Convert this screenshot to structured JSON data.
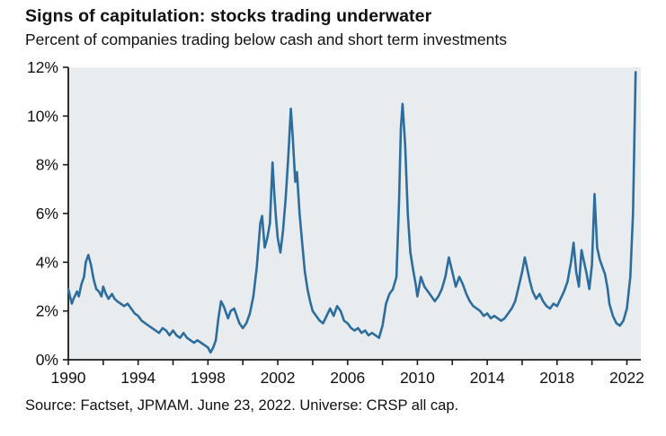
{
  "title": "Signs of capitulation: stocks trading underwater",
  "subtitle": "Percent of companies trading below cash and short term investments",
  "source": "Source: Factset, JPMAM. June 23, 2022. Universe: CRSP all cap.",
  "colors": {
    "line": "#2d6d9e",
    "plot_background": "#e9ecef",
    "axis": "#1a1a1a",
    "text": "#111111"
  },
  "chart_data": {
    "type": "line",
    "title": "Signs of capitulation: stocks trading underwater",
    "subtitle": "Percent of companies trading below cash and short term investments",
    "xlabel": "",
    "ylabel": "Percent of companies trading below cash and short term investments",
    "xlim": [
      1990,
      2022.8
    ],
    "ylim": [
      0,
      12
    ],
    "grid": false,
    "legend": false,
    "x_ticks": [
      1990,
      1994,
      1998,
      2002,
      2006,
      2010,
      2014,
      2018,
      2022
    ],
    "x_tick_labels": [
      "1990",
      "1994",
      "1998",
      "2002",
      "2006",
      "2010",
      "2014",
      "2018",
      "2022"
    ],
    "x_minor_tick_step": 2,
    "y_ticks": [
      0,
      2,
      4,
      6,
      8,
      10,
      12
    ],
    "y_tick_labels": [
      "0%",
      "2%",
      "4%",
      "6%",
      "8%",
      "10%",
      "12%"
    ],
    "series": [
      {
        "name": "Percent of companies trading below cash and short term investments",
        "points": [
          [
            1990.0,
            2.9
          ],
          [
            1990.1,
            2.6
          ],
          [
            1990.2,
            2.3
          ],
          [
            1990.3,
            2.5
          ],
          [
            1990.5,
            2.8
          ],
          [
            1990.6,
            2.6
          ],
          [
            1990.75,
            3.1
          ],
          [
            1990.9,
            3.4
          ],
          [
            1991.0,
            4.0
          ],
          [
            1991.15,
            4.3
          ],
          [
            1991.3,
            3.9
          ],
          [
            1991.45,
            3.3
          ],
          [
            1991.6,
            2.9
          ],
          [
            1991.75,
            2.8
          ],
          [
            1991.9,
            2.6
          ],
          [
            1992.0,
            3.0
          ],
          [
            1992.15,
            2.7
          ],
          [
            1992.3,
            2.5
          ],
          [
            1992.5,
            2.7
          ],
          [
            1992.65,
            2.5
          ],
          [
            1992.8,
            2.4
          ],
          [
            1993.0,
            2.3
          ],
          [
            1993.2,
            2.2
          ],
          [
            1993.4,
            2.3
          ],
          [
            1993.6,
            2.1
          ],
          [
            1993.8,
            1.9
          ],
          [
            1994.0,
            1.8
          ],
          [
            1994.2,
            1.6
          ],
          [
            1994.4,
            1.5
          ],
          [
            1994.6,
            1.4
          ],
          [
            1994.8,
            1.3
          ],
          [
            1995.0,
            1.2
          ],
          [
            1995.2,
            1.1
          ],
          [
            1995.4,
            1.3
          ],
          [
            1995.6,
            1.2
          ],
          [
            1995.8,
            1.0
          ],
          [
            1996.0,
            1.2
          ],
          [
            1996.2,
            1.0
          ],
          [
            1996.4,
            0.9
          ],
          [
            1996.6,
            1.1
          ],
          [
            1996.8,
            0.9
          ],
          [
            1997.0,
            0.8
          ],
          [
            1997.2,
            0.7
          ],
          [
            1997.4,
            0.8
          ],
          [
            1997.6,
            0.7
          ],
          [
            1997.8,
            0.6
          ],
          [
            1998.0,
            0.5
          ],
          [
            1998.15,
            0.3
          ],
          [
            1998.3,
            0.5
          ],
          [
            1998.45,
            0.8
          ],
          [
            1998.6,
            1.7
          ],
          [
            1998.75,
            2.4
          ],
          [
            1998.9,
            2.2
          ],
          [
            1999.0,
            2.0
          ],
          [
            1999.15,
            1.7
          ],
          [
            1999.3,
            2.0
          ],
          [
            1999.5,
            2.1
          ],
          [
            1999.65,
            1.8
          ],
          [
            1999.8,
            1.5
          ],
          [
            2000.0,
            1.3
          ],
          [
            2000.2,
            1.5
          ],
          [
            2000.4,
            1.9
          ],
          [
            2000.6,
            2.6
          ],
          [
            2000.8,
            3.8
          ],
          [
            2001.0,
            5.6
          ],
          [
            2001.1,
            5.9
          ],
          [
            2001.25,
            4.6
          ],
          [
            2001.4,
            5.0
          ],
          [
            2001.55,
            5.6
          ],
          [
            2001.7,
            8.1
          ],
          [
            2001.8,
            6.8
          ],
          [
            2001.9,
            5.8
          ],
          [
            2002.0,
            5.0
          ],
          [
            2002.15,
            4.4
          ],
          [
            2002.3,
            5.3
          ],
          [
            2002.45,
            6.6
          ],
          [
            2002.6,
            8.3
          ],
          [
            2002.75,
            10.3
          ],
          [
            2002.85,
            9.2
          ],
          [
            2003.0,
            7.3
          ],
          [
            2003.1,
            7.7
          ],
          [
            2003.25,
            6.0
          ],
          [
            2003.4,
            4.8
          ],
          [
            2003.55,
            3.6
          ],
          [
            2003.7,
            2.9
          ],
          [
            2003.85,
            2.4
          ],
          [
            2004.0,
            2.0
          ],
          [
            2004.2,
            1.8
          ],
          [
            2004.4,
            1.6
          ],
          [
            2004.6,
            1.5
          ],
          [
            2004.8,
            1.8
          ],
          [
            2005.0,
            2.1
          ],
          [
            2005.2,
            1.8
          ],
          [
            2005.4,
            2.2
          ],
          [
            2005.6,
            2.0
          ],
          [
            2005.8,
            1.6
          ],
          [
            2006.0,
            1.5
          ],
          [
            2006.2,
            1.3
          ],
          [
            2006.4,
            1.2
          ],
          [
            2006.6,
            1.3
          ],
          [
            2006.8,
            1.1
          ],
          [
            2007.0,
            1.2
          ],
          [
            2007.2,
            1.0
          ],
          [
            2007.4,
            1.1
          ],
          [
            2007.6,
            1.0
          ],
          [
            2007.8,
            0.9
          ],
          [
            2008.0,
            1.4
          ],
          [
            2008.2,
            2.3
          ],
          [
            2008.4,
            2.7
          ],
          [
            2008.6,
            2.9
          ],
          [
            2008.8,
            3.4
          ],
          [
            2008.95,
            6.5
          ],
          [
            2009.05,
            9.5
          ],
          [
            2009.15,
            10.5
          ],
          [
            2009.3,
            8.8
          ],
          [
            2009.45,
            6.0
          ],
          [
            2009.6,
            4.4
          ],
          [
            2009.75,
            3.7
          ],
          [
            2009.9,
            3.1
          ],
          [
            2010.0,
            2.6
          ],
          [
            2010.2,
            3.4
          ],
          [
            2010.4,
            3.0
          ],
          [
            2010.6,
            2.8
          ],
          [
            2010.8,
            2.6
          ],
          [
            2011.0,
            2.4
          ],
          [
            2011.2,
            2.6
          ],
          [
            2011.4,
            2.9
          ],
          [
            2011.6,
            3.4
          ],
          [
            2011.8,
            4.2
          ],
          [
            2012.0,
            3.6
          ],
          [
            2012.2,
            3.0
          ],
          [
            2012.4,
            3.4
          ],
          [
            2012.6,
            3.1
          ],
          [
            2012.8,
            2.7
          ],
          [
            2013.0,
            2.4
          ],
          [
            2013.2,
            2.2
          ],
          [
            2013.4,
            2.1
          ],
          [
            2013.6,
            2.0
          ],
          [
            2013.8,
            1.8
          ],
          [
            2014.0,
            1.9
          ],
          [
            2014.2,
            1.7
          ],
          [
            2014.4,
            1.8
          ],
          [
            2014.6,
            1.7
          ],
          [
            2014.8,
            1.6
          ],
          [
            2015.0,
            1.7
          ],
          [
            2015.2,
            1.9
          ],
          [
            2015.4,
            2.1
          ],
          [
            2015.6,
            2.4
          ],
          [
            2015.8,
            3.0
          ],
          [
            2016.0,
            3.6
          ],
          [
            2016.15,
            4.2
          ],
          [
            2016.3,
            3.7
          ],
          [
            2016.45,
            3.2
          ],
          [
            2016.6,
            2.8
          ],
          [
            2016.8,
            2.5
          ],
          [
            2017.0,
            2.7
          ],
          [
            2017.2,
            2.4
          ],
          [
            2017.4,
            2.2
          ],
          [
            2017.6,
            2.1
          ],
          [
            2017.8,
            2.3
          ],
          [
            2018.0,
            2.2
          ],
          [
            2018.2,
            2.5
          ],
          [
            2018.4,
            2.8
          ],
          [
            2018.6,
            3.2
          ],
          [
            2018.8,
            4.0
          ],
          [
            2018.95,
            4.8
          ],
          [
            2019.1,
            3.6
          ],
          [
            2019.25,
            3.0
          ],
          [
            2019.4,
            4.5
          ],
          [
            2019.55,
            4.0
          ],
          [
            2019.7,
            3.5
          ],
          [
            2019.85,
            2.9
          ],
          [
            2020.0,
            3.9
          ],
          [
            2020.15,
            6.8
          ],
          [
            2020.3,
            4.6
          ],
          [
            2020.45,
            4.1
          ],
          [
            2020.6,
            3.8
          ],
          [
            2020.75,
            3.5
          ],
          [
            2020.9,
            2.9
          ],
          [
            2021.0,
            2.3
          ],
          [
            2021.2,
            1.8
          ],
          [
            2021.4,
            1.5
          ],
          [
            2021.6,
            1.4
          ],
          [
            2021.8,
            1.6
          ],
          [
            2022.0,
            2.1
          ],
          [
            2022.2,
            3.4
          ],
          [
            2022.35,
            6.0
          ],
          [
            2022.5,
            11.8
          ]
        ]
      }
    ]
  }
}
